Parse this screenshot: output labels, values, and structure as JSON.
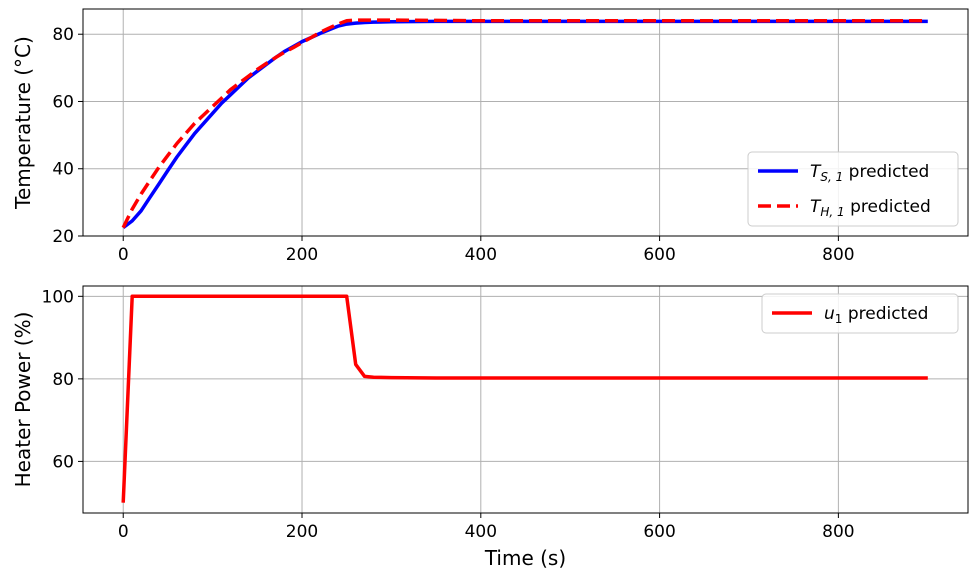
{
  "chart_data": [
    {
      "type": "line",
      "ylabel": "Temperature (°C)",
      "xlabel": "",
      "xlim": [
        -45,
        945
      ],
      "ylim": [
        20,
        87.5
      ],
      "xticks": [
        0,
        200,
        400,
        600,
        800
      ],
      "yticks": [
        20,
        40,
        60,
        80
      ],
      "grid": true,
      "legend_position": "lower-right",
      "series": [
        {
          "name": "T_{S,1} predicted",
          "legend_main": "T",
          "legend_sub": "S, 1",
          "legend_suffix": " predicted",
          "color": "#0000ff",
          "style": "solid",
          "x": [
            0,
            10,
            20,
            30,
            40,
            50,
            60,
            70,
            80,
            90,
            100,
            110,
            120,
            130,
            140,
            150,
            160,
            170,
            180,
            190,
            200,
            210,
            220,
            230,
            240,
            250,
            260,
            270,
            280,
            300,
            350,
            400,
            500,
            600,
            700,
            800,
            900
          ],
          "y": [
            22.5,
            24.5,
            27.5,
            31.5,
            35.5,
            39.5,
            43.5,
            47.0,
            50.5,
            53.5,
            56.5,
            59.5,
            62.0,
            64.5,
            67.0,
            69.0,
            71.0,
            73.0,
            74.8,
            76.3,
            77.8,
            79.0,
            80.2,
            81.3,
            82.4,
            83.0,
            83.3,
            83.5,
            83.6,
            83.7,
            83.8,
            83.8,
            83.8,
            83.8,
            83.8,
            83.8,
            83.8
          ]
        },
        {
          "name": "T_{H,1} predicted",
          "legend_main": "T",
          "legend_sub": "H, 1",
          "legend_suffix": " predicted",
          "color": "#ff0000",
          "style": "dashed",
          "x": [
            0,
            10,
            20,
            30,
            40,
            50,
            60,
            70,
            80,
            90,
            100,
            110,
            120,
            130,
            140,
            150,
            160,
            170,
            180,
            190,
            200,
            210,
            220,
            230,
            240,
            250,
            260,
            270,
            280,
            300,
            350,
            400,
            500,
            600,
            700,
            800,
            900
          ],
          "y": [
            22.5,
            28.0,
            32.5,
            36.5,
            40.5,
            44.0,
            47.5,
            50.5,
            53.5,
            56.0,
            58.5,
            61.0,
            63.5,
            65.5,
            67.5,
            69.5,
            71.3,
            73.0,
            74.6,
            76.0,
            77.5,
            79.0,
            80.5,
            81.8,
            83.0,
            84.0,
            84.2,
            84.2,
            84.2,
            84.2,
            84.1,
            84.0,
            84.0,
            84.0,
            84.0,
            84.0,
            84.0
          ]
        }
      ]
    },
    {
      "type": "line",
      "ylabel": "Heater Power (%)",
      "xlabel": "Time (s)",
      "xlim": [
        -45,
        945
      ],
      "ylim": [
        47.5,
        102.5
      ],
      "xticks": [
        0,
        200,
        400,
        600,
        800
      ],
      "yticks": [
        60,
        80,
        100
      ],
      "grid": true,
      "legend_position": "top-right",
      "series": [
        {
          "name": "u_1 predicted",
          "legend_main": "u",
          "legend_sub": "1",
          "legend_suffix": " predicted",
          "color": "#ff0000",
          "style": "solid",
          "x": [
            0,
            10,
            250,
            260,
            270,
            280,
            300,
            350,
            400,
            500,
            600,
            700,
            800,
            900
          ],
          "y": [
            50,
            100,
            100,
            83.5,
            80.6,
            80.4,
            80.3,
            80.2,
            80.2,
            80.2,
            80.2,
            80.2,
            80.2,
            80.2
          ]
        }
      ]
    }
  ]
}
